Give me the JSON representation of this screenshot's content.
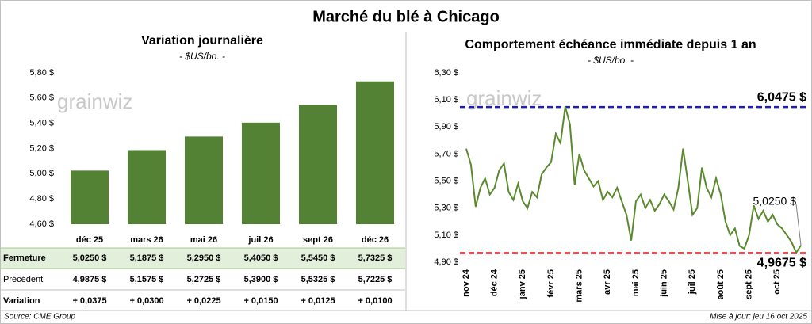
{
  "title": "Marché du blé à Chicago",
  "logo": "grainwiz",
  "source": "Source: CME Group",
  "updated": "Mise à jour: jeu 16 oct 2025",
  "chart_data": [
    {
      "type": "bar",
      "title": "Variation journalière",
      "subtitle": "- $US/bo. -",
      "categories": [
        "déc 25",
        "mars 26",
        "mai 26",
        "juil 26",
        "sept 26",
        "déc 26"
      ],
      "values": [
        5.025,
        5.1875,
        5.295,
        5.405,
        5.545,
        5.7325
      ],
      "color": "#548235",
      "ylim": [
        4.6,
        5.8
      ],
      "yticks": [
        {
          "value": 4.6,
          "label": "4,60 $"
        },
        {
          "value": 4.8,
          "label": "4,80 $"
        },
        {
          "value": 5.0,
          "label": "5,00 $"
        },
        {
          "value": 5.2,
          "label": "5,20 $"
        },
        {
          "value": 5.4,
          "label": "5,40 $"
        },
        {
          "value": 5.6,
          "label": "5,60 $"
        },
        {
          "value": 5.8,
          "label": "5,80 $"
        }
      ]
    },
    {
      "type": "line",
      "title": "Comportement échéance immédiate depuis 1 an",
      "subtitle": "- $US/bo. -",
      "categories": [
        "nov 24",
        null,
        null,
        null,
        null,
        null,
        "déc 24",
        null,
        null,
        null,
        null,
        null,
        "janv 25",
        null,
        null,
        null,
        null,
        null,
        "févr 25",
        null,
        null,
        null,
        null,
        null,
        "mars 25",
        null,
        null,
        null,
        null,
        null,
        "avr 25",
        null,
        null,
        null,
        null,
        null,
        "mai 25",
        null,
        null,
        null,
        null,
        null,
        "juin 25",
        null,
        null,
        null,
        null,
        null,
        "juil 25",
        null,
        null,
        null,
        null,
        null,
        "août 25",
        null,
        null,
        null,
        null,
        null,
        "sept 25",
        null,
        null,
        null,
        null,
        null,
        "oct 25",
        null,
        null,
        null,
        null,
        null
      ],
      "values": [
        5.74,
        5.62,
        5.31,
        5.45,
        5.52,
        5.4,
        5.45,
        5.58,
        5.63,
        5.42,
        5.36,
        5.48,
        5.35,
        5.3,
        5.42,
        5.38,
        5.55,
        5.6,
        5.64,
        5.85,
        5.78,
        6.05,
        5.92,
        5.47,
        5.7,
        5.58,
        5.52,
        5.46,
        5.5,
        5.36,
        5.42,
        5.38,
        5.45,
        5.35,
        5.25,
        5.06,
        5.35,
        5.4,
        5.3,
        5.36,
        5.28,
        5.33,
        5.4,
        5.35,
        5.29,
        5.45,
        5.74,
        5.5,
        5.25,
        5.3,
        5.6,
        5.45,
        5.38,
        5.52,
        5.4,
        5.2,
        5.1,
        5.15,
        5.02,
        5.0,
        5.1,
        5.32,
        5.22,
        5.28,
        5.2,
        5.25,
        5.18,
        5.15,
        5.1,
        5.05,
        4.97,
        5.025
      ],
      "color": "#5b8a2e",
      "ylim": [
        4.9,
        6.3
      ],
      "yticks": [
        {
          "value": 4.9,
          "label": "4,90 $"
        },
        {
          "value": 5.1,
          "label": "5,10 $"
        },
        {
          "value": 5.3,
          "label": "5,30 $"
        },
        {
          "value": 5.5,
          "label": "5,50 $"
        },
        {
          "value": 5.7,
          "label": "5,70 $"
        },
        {
          "value": 5.9,
          "label": "5,90 $"
        },
        {
          "value": 6.1,
          "label": "6,10 $"
        },
        {
          "value": 6.3,
          "label": "6,30 $"
        }
      ],
      "hlines": [
        {
          "value": 6.0475,
          "label": "6,0475 $",
          "color": "#1f1fb4"
        },
        {
          "value": 4.9675,
          "label": "4,9675 $",
          "color": "#e8141b"
        }
      ],
      "annotation": {
        "value": 5.025,
        "label": "5,0250 $"
      }
    }
  ],
  "table": {
    "rows": [
      [
        "Fermeture",
        "5,0250  $",
        "5,1875  $",
        "5,2950  $",
        "5,4050  $",
        "5,5450  $",
        "5,7325  $"
      ],
      [
        "Précédent",
        "4,9875  $",
        "5,1575  $",
        "5,2725  $",
        "5,3900  $",
        "5,5325  $",
        "5,7225  $"
      ],
      [
        "Variation",
        "+ 0,0375",
        "+ 0,0300",
        "+ 0,0225",
        "+ 0,0150",
        "+ 0,0125",
        "+ 0,0100"
      ]
    ]
  }
}
